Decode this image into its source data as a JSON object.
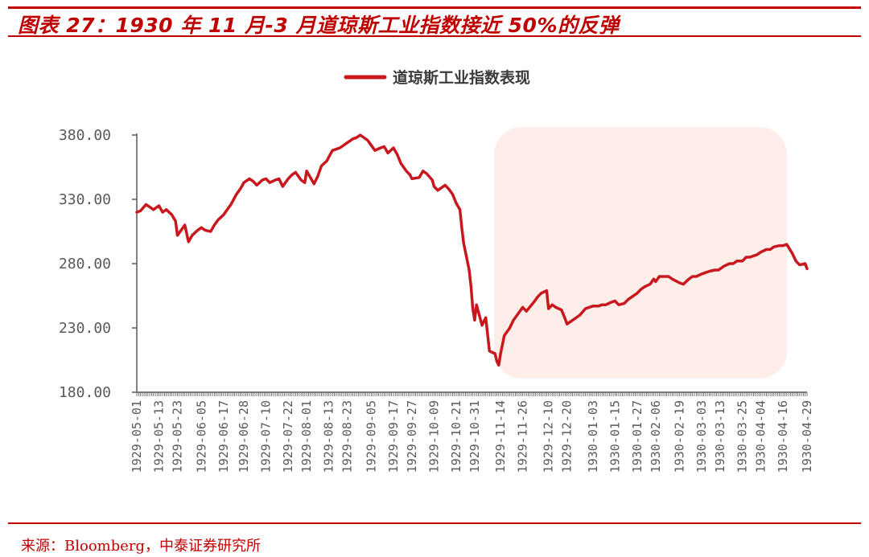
{
  "header": {
    "title": "图表 27：1930 年 11 月-3 月道琼斯工业指数接近 50%的反弹"
  },
  "footer": {
    "source": "来源：Bloomberg，中泰证券研究所"
  },
  "colors": {
    "accent": "#c00000",
    "line": "#c8181e",
    "highlight": "#fdeeea",
    "axis": "#595959"
  },
  "chart_data": {
    "type": "line",
    "legend": "道琼斯工业指数表现",
    "legend_position": "top-center",
    "grid": false,
    "ylim": [
      180,
      380
    ],
    "yticks": [
      "380.00",
      "330.00",
      "280.00",
      "230.00",
      "180.00"
    ],
    "ytick_values": [
      380,
      330,
      280,
      230,
      180
    ],
    "xticks": [
      "1929-05-01",
      "1929-05-13",
      "1929-05-23",
      "1929-06-05",
      "1929-06-17",
      "1929-06-28",
      "1929-07-10",
      "1929-07-22",
      "1929-08-01",
      "1929-08-13",
      "1929-08-23",
      "1929-09-05",
      "1929-09-17",
      "1929-09-27",
      "1929-10-09",
      "1929-10-21",
      "1929-10-31",
      "1929-11-14",
      "1929-11-26",
      "1929-12-10",
      "1929-12-20",
      "1930-01-03",
      "1930-01-15",
      "1930-01-27",
      "1930-02-06",
      "1930-02-19",
      "1930-03-03",
      "1930-03-13",
      "1930-03-25",
      "1930-04-04",
      "1930-04-16",
      "1930-04-29"
    ],
    "highlight_range": [
      "1929-11-14",
      "1930-04-29"
    ],
    "series": [
      {
        "name": "道琼斯工业指数表现",
        "x": [
          "1929-05-01",
          "1929-05-03",
          "1929-05-06",
          "1929-05-08",
          "1929-05-10",
          "1929-05-13",
          "1929-05-15",
          "1929-05-17",
          "1929-05-20",
          "1929-05-22",
          "1929-05-23",
          "1929-05-27",
          "1929-05-29",
          "1929-05-31",
          "1929-06-03",
          "1929-06-05",
          "1929-06-07",
          "1929-06-10",
          "1929-06-12",
          "1929-06-14",
          "1929-06-17",
          "1929-06-19",
          "1929-06-21",
          "1929-06-24",
          "1929-06-26",
          "1929-06-28",
          "1929-07-01",
          "1929-07-03",
          "1929-07-05",
          "1929-07-08",
          "1929-07-10",
          "1929-07-12",
          "1929-07-15",
          "1929-07-17",
          "1929-07-19",
          "1929-07-22",
          "1929-07-24",
          "1929-07-26",
          "1929-07-29",
          "1929-07-31",
          "1929-08-01",
          "1929-08-05",
          "1929-08-07",
          "1929-08-09",
          "1929-08-12",
          "1929-08-13",
          "1929-08-15",
          "1929-08-19",
          "1929-08-21",
          "1929-08-23",
          "1929-08-26",
          "1929-08-28",
          "1929-08-30",
          "1929-09-03",
          "1929-09-05",
          "1929-09-07",
          "1929-09-10",
          "1929-09-12",
          "1929-09-14",
          "1929-09-17",
          "1929-09-19",
          "1929-09-21",
          "1929-09-24",
          "1929-09-26",
          "1929-09-27",
          "1929-10-01",
          "1929-10-03",
          "1929-10-05",
          "1929-10-08",
          "1929-10-09",
          "1929-10-11",
          "1929-10-15",
          "1929-10-17",
          "1929-10-19",
          "1929-10-21",
          "1929-10-23",
          "1929-10-24",
          "1929-10-25",
          "1929-10-28",
          "1929-10-29",
          "1929-10-30",
          "1929-10-31",
          "1929-11-01",
          "1929-11-04",
          "1929-11-06",
          "1929-11-07",
          "1929-11-08",
          "1929-11-11",
          "1929-11-12",
          "1929-11-13",
          "1929-11-14",
          "1929-11-16",
          "1929-11-19",
          "1929-11-21",
          "1929-11-23",
          "1929-11-26",
          "1929-11-28",
          "1929-12-02",
          "1929-12-04",
          "1929-12-06",
          "1929-12-09",
          "1929-12-10",
          "1929-12-12",
          "1929-12-14",
          "1929-12-17",
          "1929-12-19",
          "1929-12-20",
          "1929-12-23",
          "1929-12-27",
          "1929-12-30",
          "1930-01-03",
          "1930-01-06",
          "1930-01-08",
          "1930-01-10",
          "1930-01-13",
          "1930-01-15",
          "1930-01-17",
          "1930-01-20",
          "1930-01-22",
          "1930-01-24",
          "1930-01-27",
          "1930-01-29",
          "1930-01-31",
          "1930-02-03",
          "1930-02-05",
          "1930-02-06",
          "1930-02-08",
          "1930-02-11",
          "1930-02-13",
          "1930-02-15",
          "1930-02-19",
          "1930-02-21",
          "1930-02-24",
          "1930-02-26",
          "1930-02-28",
          "1930-03-03",
          "1930-03-05",
          "1930-03-07",
          "1930-03-10",
          "1930-03-12",
          "1930-03-13",
          "1930-03-15",
          "1930-03-18",
          "1930-03-20",
          "1930-03-22",
          "1930-03-25",
          "1930-03-27",
          "1930-03-29",
          "1930-03-31",
          "1930-04-02",
          "1930-04-04",
          "1930-04-07",
          "1930-04-09",
          "1930-04-11",
          "1930-04-14",
          "1930-04-16",
          "1930-04-18",
          "1930-04-21",
          "1930-04-23",
          "1930-04-25",
          "1930-04-28",
          "1930-04-29"
        ],
        "values": [
          320,
          321,
          326,
          324,
          322,
          325,
          320,
          322,
          318,
          313,
          302,
          310,
          297,
          302,
          306,
          308,
          306,
          305,
          310,
          314,
          318,
          322,
          326,
          334,
          338,
          343,
          346,
          344,
          341,
          345,
          346,
          343,
          345,
          346,
          340,
          346,
          349,
          351,
          345,
          343,
          352,
          342,
          348,
          356,
          360,
          363,
          368,
          370,
          372,
          374,
          377,
          378,
          380,
          376,
          372,
          368,
          370,
          371,
          366,
          370,
          365,
          358,
          352,
          349,
          346,
          347,
          352,
          350,
          345,
          340,
          337,
          341,
          338,
          334,
          327,
          322,
          308,
          296,
          275,
          262,
          245,
          236,
          248,
          232,
          238,
          225,
          212,
          210,
          204,
          201,
          210,
          224,
          230,
          236,
          240,
          246,
          243,
          250,
          254,
          257,
          259,
          245,
          248,
          246,
          244,
          237,
          233,
          236,
          240,
          245,
          247,
          247,
          248,
          248,
          250,
          251,
          248,
          249,
          252,
          254,
          257,
          260,
          262,
          264,
          268,
          266,
          270,
          270,
          270,
          268,
          265,
          264,
          268,
          270,
          270,
          272,
          273,
          274,
          275,
          275,
          276,
          278,
          280,
          280,
          282,
          282,
          285,
          285,
          286,
          287,
          289,
          291,
          291,
          293,
          294,
          294,
          295,
          288,
          282,
          279,
          280,
          276
        ]
      }
    ]
  }
}
